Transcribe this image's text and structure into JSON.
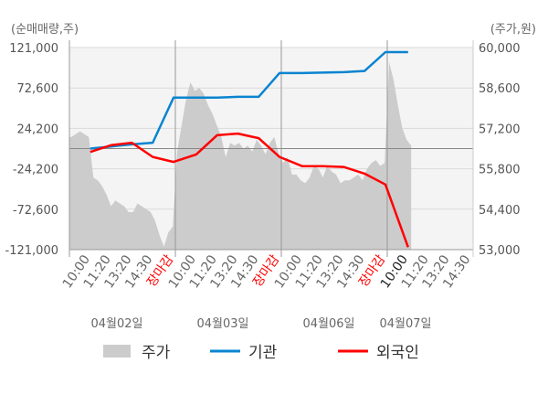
{
  "chart_data": {
    "type": "line",
    "left_axis_label": "(순매매량,주)",
    "right_axis_label": "(주가,원)",
    "left_ylim": [
      -121000,
      121000
    ],
    "right_ylim": [
      53000,
      60000
    ],
    "left_ticks": [
      "121,000",
      "72,600",
      "24,200",
      "-24,200",
      "-72,600",
      "-121,000"
    ],
    "left_tick_values": [
      121000,
      72600,
      24200,
      -24200,
      -72600,
      -121000
    ],
    "right_ticks": [
      "60,000",
      "58,600",
      "57,200",
      "55,800",
      "54,400",
      "53,000"
    ],
    "right_tick_values": [
      60000,
      58600,
      57200,
      55800,
      54400,
      53000
    ],
    "days": [
      {
        "label": "04월02일",
        "ticks": [
          "10:00",
          "11:20",
          "13:20",
          "14:30",
          "장마감"
        ]
      },
      {
        "label": "04월03일",
        "ticks": [
          "10:00",
          "11:20",
          "13:20",
          "14:30",
          "장마감"
        ]
      },
      {
        "label": "04월06일",
        "ticks": [
          "10:00",
          "11:20",
          "13:20",
          "14:30",
          "장마감"
        ]
      },
      {
        "label": "04월07일",
        "ticks": [
          "10:00",
          "11:20",
          "13:20",
          "14:30"
        ]
      }
    ],
    "close_label": "장마감",
    "grid": true,
    "legend_position": "bottom",
    "series": [
      {
        "name": "주가",
        "type": "area",
        "axis": "right",
        "color": "#cccccc",
        "values_by_day": [
          [
            56900,
            57000,
            57100,
            57000,
            56900,
            55500,
            55400,
            55200,
            54900,
            54500,
            54700,
            54600,
            54500,
            54300,
            54300,
            54600,
            54500,
            54400,
            54300,
            54000,
            53500,
            53100,
            53600,
            53800
          ],
          [
            56400,
            57300,
            58200,
            58800,
            58500,
            58600,
            58400,
            58000,
            57700,
            57300,
            56900,
            56200,
            56700,
            56600,
            56700,
            56500,
            56600,
            56400,
            56800,
            56600,
            56300,
            56700,
            56900,
            56300
          ],
          [
            56000,
            56200,
            55600,
            55600,
            55400,
            55300,
            55500,
            55900,
            55800,
            55500,
            55900,
            55700,
            55600,
            55300,
            55400,
            55400,
            55500,
            55600,
            55400,
            55800,
            56000,
            56100,
            55900,
            56000
          ],
          [
            59500,
            58900,
            58000,
            57200,
            56800,
            56600
          ]
        ]
      },
      {
        "name": "기관",
        "type": "line",
        "axis": "left",
        "color": "#0a84d0",
        "values_by_day": [
          [
            0,
            2500,
            5000,
            7000,
            61000
          ],
          [
            61000,
            61000,
            62000,
            62000,
            90500
          ],
          [
            90500,
            91000,
            91500,
            93000,
            115500
          ],
          [
            115500,
            null,
            null,
            null
          ]
        ]
      },
      {
        "name": "외국인",
        "type": "line",
        "axis": "left",
        "color": "#ff0000",
        "values_by_day": [
          [
            -4000,
            4000,
            7000,
            -10000,
            -16000
          ],
          [
            -7000,
            16000,
            18000,
            12500,
            -10000
          ],
          [
            -21000,
            -21000,
            -22000,
            -30000,
            -43000
          ],
          [
            -118000,
            null,
            null,
            null
          ]
        ]
      }
    ]
  },
  "legend": [
    {
      "label": "주가",
      "color": "#cccccc",
      "kind": "box"
    },
    {
      "label": "기관",
      "color": "#0a84d0",
      "kind": "line"
    },
    {
      "label": "외국인",
      "color": "#ff0000",
      "kind": "line"
    }
  ]
}
